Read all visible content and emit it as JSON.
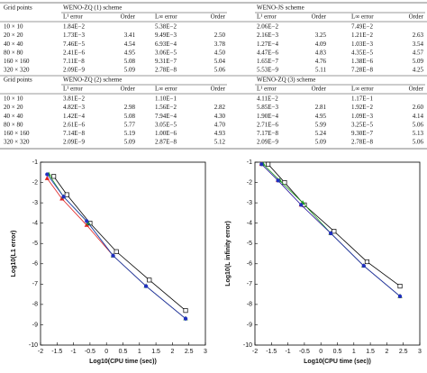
{
  "table": {
    "sections": [
      {
        "headers": [
          "Grid points",
          "WENO-ZQ (1) scheme",
          "WENO-JS scheme"
        ],
        "subheaders": [
          "L¹ error",
          "Order",
          "L∞ error",
          "Order",
          "L¹ error",
          "Order",
          "L∞ error",
          "Order"
        ],
        "rows": [
          [
            "10 × 10",
            "1.84E−2",
            null,
            "5.38E−2",
            null,
            "2.06E−2",
            null,
            "7.49E−2",
            null
          ],
          [
            "20 × 20",
            "1.73E−3",
            "3.41",
            "9.49E−3",
            "2.50",
            "2.16E−3",
            "3.25",
            "1.21E−2",
            "2.63"
          ],
          [
            "40 × 40",
            "7.46E−5",
            "4.54",
            "6.93E−4",
            "3.78",
            "1.27E−4",
            "4.09",
            "1.03E−3",
            "3.54"
          ],
          [
            "80 × 80",
            "2.41E−6",
            "4.95",
            "3.06E−5",
            "4.50",
            "4.47E−6",
            "4.83",
            "4.35E−5",
            "4.57"
          ],
          [
            "160 × 160",
            "7.11E−8",
            "5.08",
            "9.31E−7",
            "5.04",
            "1.65E−7",
            "4.76",
            "1.38E−6",
            "5.09"
          ],
          [
            "320 × 320",
            "2.09E−9",
            "5.09",
            "2.78E−8",
            "5.06",
            "5.53E−9",
            "5.11",
            "7.28E−8",
            "4.25"
          ]
        ]
      },
      {
        "headers": [
          "Grid points",
          "WENO-ZQ (2) scheme",
          "WENO-ZQ (3) scheme"
        ],
        "subheaders": [
          "L¹ error",
          "Order",
          "L∞ error",
          "Order",
          "L¹ error",
          "Order",
          "L∞ error",
          "Order"
        ],
        "rows": [
          [
            "10 × 10",
            "3.81E−2",
            null,
            "1.10E−1",
            null,
            "4.11E−2",
            null,
            "1.17E−1",
            null
          ],
          [
            "20 × 20",
            "4.82E−3",
            "2.98",
            "1.56E−2",
            "2.82",
            "5.85E−3",
            "2.81",
            "1.92E−2",
            "2.60"
          ],
          [
            "40 × 40",
            "1.42E−4",
            "5.08",
            "7.94E−4",
            "4.30",
            "1.90E−4",
            "4.95",
            "1.09E−3",
            "4.14"
          ],
          [
            "80 × 80",
            "2.61E−6",
            "5.77",
            "3.05E−5",
            "4.70",
            "2.71E−6",
            "5.99",
            "3.25E−5",
            "5.06"
          ],
          [
            "160 × 160",
            "7.14E−8",
            "5.19",
            "1.00E−6",
            "4.93",
            "7.17E−8",
            "5.24",
            "9.30E−7",
            "5.13"
          ],
          [
            "320 × 320",
            "2.09E−9",
            "5.09",
            "2.87E−8",
            "5.12",
            "2.09E−9",
            "5.09",
            "2.78E−8",
            "5.06"
          ]
        ]
      }
    ]
  },
  "chart_data": [
    {
      "type": "line",
      "xlabel": "Log10(CPU time (sec))",
      "ylabel": "Log10(L1 error)",
      "xlim": [
        -2,
        3
      ],
      "xticks": [
        -2,
        -1.5,
        -1,
        -0.5,
        0,
        0.5,
        1,
        1.5,
        2,
        2.5,
        3
      ],
      "ylim": [
        -10,
        -1
      ],
      "yticks": [
        -1,
        -2,
        -3,
        -4,
        -5,
        -6,
        -7,
        -8,
        -9,
        -10
      ],
      "series": [
        {
          "color": "#000000",
          "marker": "square",
          "x": [
            -1.6,
            -1.2,
            -0.5,
            0.3,
            1.3,
            2.4
          ],
          "values": [
            -1.7,
            -2.6,
            -4.0,
            -5.4,
            -6.8,
            -8.3
          ]
        },
        {
          "color": "#e02020",
          "marker": "triangle",
          "x": [
            -1.8,
            -1.35,
            -0.6,
            0.2,
            1.2,
            2.4
          ],
          "values": [
            -1.8,
            -2.8,
            -4.1,
            -5.6,
            -7.1,
            -8.7
          ]
        },
        {
          "color": "#20a020",
          "marker": "triangle",
          "x": [
            -1.75,
            -1.3,
            -0.55,
            0.2,
            1.2,
            2.4
          ],
          "values": [
            -1.6,
            -2.7,
            -4.0,
            -5.6,
            -7.1,
            -8.7
          ]
        },
        {
          "color": "#2030c0",
          "marker": "circle",
          "x": [
            -1.8,
            -1.3,
            -0.6,
            0.2,
            1.2,
            2.4
          ],
          "values": [
            -1.6,
            -2.7,
            -3.9,
            -5.6,
            -7.1,
            -8.7
          ]
        }
      ]
    },
    {
      "type": "line",
      "xlabel": "Log10(CPU time (sec))",
      "ylabel": "Log10(L infinity error)",
      "xlim": [
        -2,
        3
      ],
      "xticks": [
        -2,
        -1.5,
        -1,
        -0.5,
        0,
        0.5,
        1,
        1.5,
        2,
        2.5,
        3
      ],
      "ylim": [
        -10,
        -1
      ],
      "yticks": [
        -1,
        -2,
        -3,
        -4,
        -5,
        -6,
        -7,
        -8,
        -9,
        -10
      ],
      "series": [
        {
          "color": "#000000",
          "marker": "square",
          "x": [
            -1.6,
            -1.1,
            -0.5,
            0.4,
            1.4,
            2.4
          ],
          "values": [
            -1.1,
            -2.0,
            -3.1,
            -4.4,
            -5.9,
            -7.1
          ]
        },
        {
          "color": "#e02020",
          "marker": "triangle",
          "x": [
            -1.8,
            -1.3,
            -0.6,
            0.3,
            1.3,
            2.4
          ],
          "values": [
            -1.1,
            -1.9,
            -3.1,
            -4.5,
            -6.1,
            -7.6
          ]
        },
        {
          "color": "#20a020",
          "marker": "triangle",
          "x": [
            -1.75,
            -1.25,
            -0.55,
            0.3,
            1.3,
            2.4
          ],
          "values": [
            -1.1,
            -1.9,
            -3.0,
            -4.5,
            -6.1,
            -7.6
          ]
        },
        {
          "color": "#2030c0",
          "marker": "circle",
          "x": [
            -1.8,
            -1.3,
            -0.6,
            0.3,
            1.3,
            2.4
          ],
          "values": [
            -1.1,
            -1.9,
            -3.1,
            -4.5,
            -6.1,
            -7.6
          ]
        }
      ]
    }
  ]
}
